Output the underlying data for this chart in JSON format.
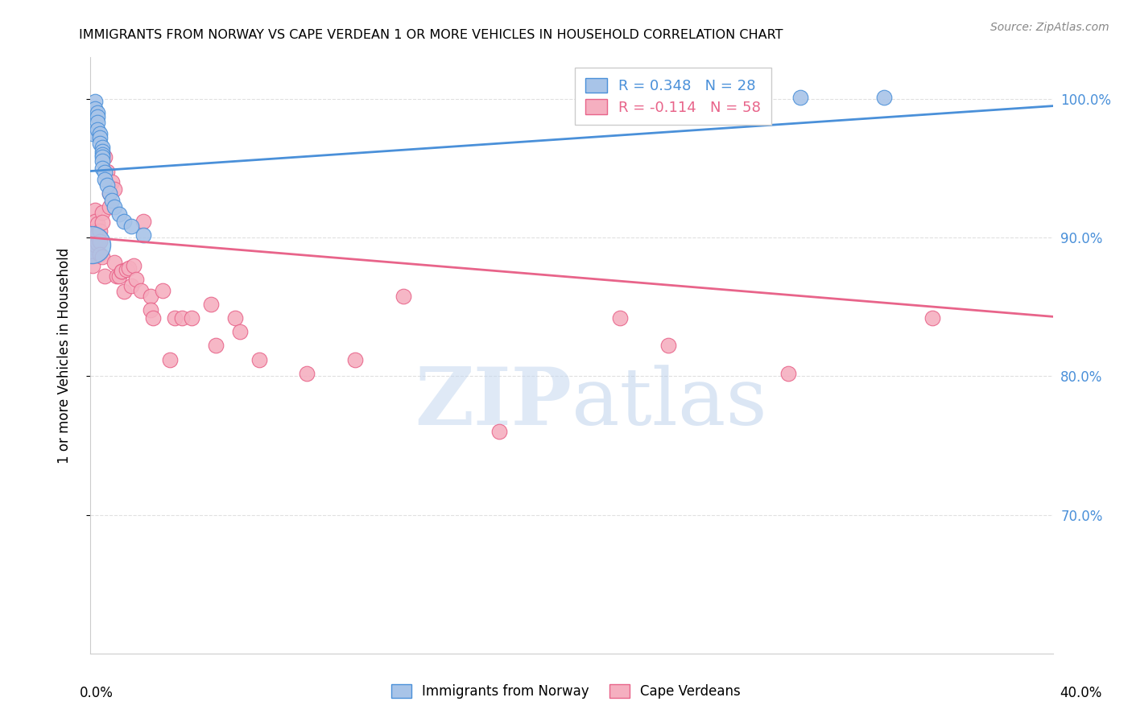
{
  "title": "IMMIGRANTS FROM NORWAY VS CAPE VERDEAN 1 OR MORE VEHICLES IN HOUSEHOLD CORRELATION CHART",
  "source": "Source: ZipAtlas.com",
  "ylabel": "1 or more Vehicles in Household",
  "xmin": 0.0,
  "xmax": 0.4,
  "ymin": 0.6,
  "ymax": 1.03,
  "norway_R": 0.348,
  "norway_N": 28,
  "capeverde_R": -0.114,
  "capeverde_N": 58,
  "norway_color": "#a8c4e8",
  "norway_line_color": "#4a90d9",
  "capeverde_color": "#f5afc0",
  "capeverde_line_color": "#e8648a",
  "legend_label_norway": "Immigrants from Norway",
  "legend_label_capeverde": "Cape Verdeans",
  "norway_x": [
    0.001,
    0.002,
    0.002,
    0.003,
    0.003,
    0.003,
    0.003,
    0.004,
    0.004,
    0.004,
    0.005,
    0.005,
    0.005,
    0.005,
    0.005,
    0.005,
    0.006,
    0.006,
    0.007,
    0.008,
    0.009,
    0.01,
    0.012,
    0.014,
    0.017,
    0.022,
    0.295,
    0.33
  ],
  "norway_y": [
    0.975,
    0.998,
    0.993,
    0.99,
    0.987,
    0.983,
    0.978,
    0.975,
    0.972,
    0.968,
    0.965,
    0.962,
    0.96,
    0.958,
    0.955,
    0.95,
    0.947,
    0.942,
    0.938,
    0.932,
    0.927,
    0.922,
    0.917,
    0.912,
    0.908,
    0.902,
    1.001,
    1.001
  ],
  "capeverde_x": [
    0.001,
    0.001,
    0.001,
    0.001,
    0.002,
    0.002,
    0.002,
    0.002,
    0.003,
    0.003,
    0.003,
    0.004,
    0.004,
    0.004,
    0.005,
    0.005,
    0.005,
    0.006,
    0.006,
    0.007,
    0.008,
    0.008,
    0.009,
    0.01,
    0.01,
    0.011,
    0.012,
    0.013,
    0.013,
    0.014,
    0.015,
    0.016,
    0.017,
    0.018,
    0.019,
    0.021,
    0.022,
    0.025,
    0.025,
    0.026,
    0.03,
    0.033,
    0.035,
    0.038,
    0.042,
    0.05,
    0.052,
    0.06,
    0.062,
    0.07,
    0.09,
    0.11,
    0.13,
    0.17,
    0.22,
    0.24,
    0.29,
    0.35
  ],
  "capeverde_y": [
    0.9,
    0.893,
    0.887,
    0.88,
    0.92,
    0.912,
    0.905,
    0.895,
    0.91,
    0.903,
    0.896,
    0.905,
    0.897,
    0.888,
    0.918,
    0.911,
    0.886,
    0.958,
    0.872,
    0.948,
    0.932,
    0.922,
    0.94,
    0.935,
    0.882,
    0.872,
    0.872,
    0.876,
    0.876,
    0.861,
    0.877,
    0.878,
    0.865,
    0.88,
    0.87,
    0.862,
    0.912,
    0.858,
    0.848,
    0.842,
    0.862,
    0.812,
    0.842,
    0.842,
    0.842,
    0.852,
    0.822,
    0.842,
    0.832,
    0.812,
    0.802,
    0.812,
    0.858,
    0.76,
    0.842,
    0.822,
    0.802,
    0.842
  ],
  "norway_line_x": [
    0.0,
    0.4
  ],
  "norway_line_y": [
    0.948,
    0.995
  ],
  "capeverde_line_x": [
    0.0,
    0.4
  ],
  "capeverde_line_y": [
    0.9,
    0.843
  ],
  "watermark_zip": "ZIP",
  "watermark_atlas": "atlas",
  "watermark_color_zip": "#c8d8ee",
  "watermark_color_atlas": "#b8c8de",
  "background_color": "#ffffff",
  "grid_color": "#e0e0e0",
  "yticks": [
    0.7,
    0.8,
    0.9,
    1.0
  ],
  "ytick_labels": [
    "70.0%",
    "80.0%",
    "90.0%",
    "100.0%"
  ],
  "xtick_left_label": "0.0%",
  "xtick_right_label": "40.0%"
}
